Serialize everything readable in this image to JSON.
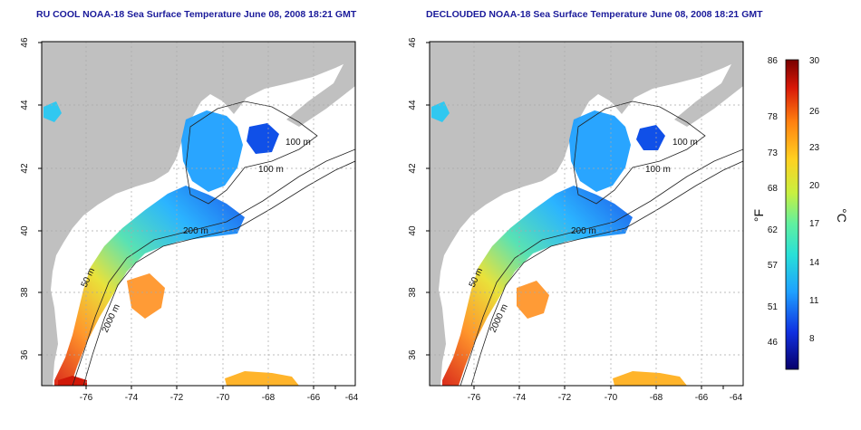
{
  "left_panel": {
    "title": "RU COOL NOAA-18 Sea Surface Temperature June 08, 2008 18:21 GMT",
    "x_ticks": [
      "-76",
      "-74",
      "-72",
      "-70",
      "-68",
      "-66",
      "-64"
    ],
    "y_ticks": [
      "46",
      "44",
      "42",
      "40",
      "38",
      "36"
    ],
    "contour_labels": [
      "100 m",
      "100 m",
      "200 m",
      "50 m",
      "2000 m"
    ]
  },
  "right_panel": {
    "title": "DECLOUDED NOAA-18 Sea Surface Temperature June 08, 2008 18:21 GMT",
    "x_ticks": [
      "-76",
      "-74",
      "-72",
      "-70",
      "-68",
      "-66",
      "-64"
    ],
    "y_ticks": [
      "46",
      "44",
      "42",
      "40",
      "38",
      "36"
    ],
    "contour_labels": [
      "100 m",
      "100 m",
      "200 m",
      "50 m",
      "2000 m"
    ]
  },
  "colorbar": {
    "fahrenheit_label": "°F",
    "celsius_label": "°C",
    "fahrenheit_ticks": [
      "86",
      "78",
      "73",
      "68",
      "62",
      "57",
      "51",
      "46"
    ],
    "celsius_ticks": [
      "30",
      "26",
      "23",
      "20",
      "17",
      "14",
      "11",
      "8"
    ],
    "colors": [
      "#08006b",
      "#1030e0",
      "#1ea0ff",
      "#28e0d8",
      "#60f0a0",
      "#c8f040",
      "#ffd020",
      "#ff8010",
      "#d81808",
      "#780000"
    ]
  },
  "map": {
    "land_color": "#c0c0c0",
    "water_color": "#ffffff",
    "grid_color": "#a8a8a8"
  }
}
